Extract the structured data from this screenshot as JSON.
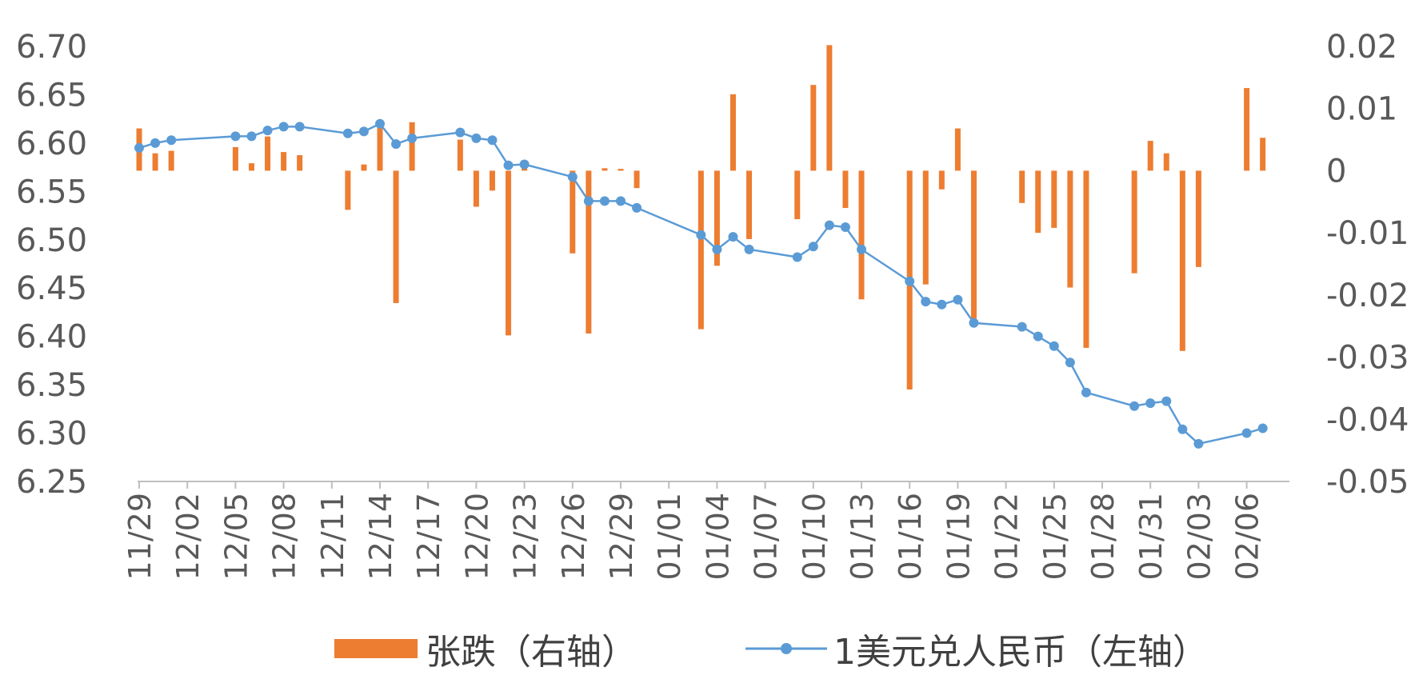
{
  "chart_data": {
    "type": "bar+line",
    "title": "",
    "x_labels": [
      "11/29",
      "12/02",
      "12/05",
      "12/08",
      "12/11",
      "12/14",
      "12/17",
      "12/20",
      "12/23",
      "12/26",
      "12/29",
      "01/01",
      "01/04",
      "01/07",
      "01/10",
      "01/13",
      "01/16",
      "01/19",
      "01/22",
      "01/25",
      "01/28",
      "01/31",
      "02/03",
      "02/06"
    ],
    "left_axis": {
      "ticks": [
        "6.25",
        "6.30",
        "6.35",
        "6.40",
        "6.45",
        "6.50",
        "6.55",
        "6.60",
        "6.65",
        "6.70"
      ],
      "ylim": [
        6.25,
        6.7
      ]
    },
    "right_axis": {
      "ticks": [
        "-0.05",
        "-0.04",
        "-0.03",
        "-0.02",
        "-0.01",
        "0",
        "0.01",
        "0.02"
      ],
      "ylim": [
        -0.05,
        0.02
      ]
    },
    "bar_color": "#ED7D31",
    "line_color": "#5B9BD5",
    "series": [
      {
        "name": "张跌（右轴）",
        "axis": "right",
        "kind": "bar",
        "points": [
          [
            "11/29",
            0.0068
          ],
          [
            "11/30",
            0.0028
          ],
          [
            "12/01",
            0.0032
          ],
          [
            "12/05",
            0.0038
          ],
          [
            "12/06",
            0.0012
          ],
          [
            "12/07",
            0.0055
          ],
          [
            "12/08",
            0.003
          ],
          [
            "12/09",
            0.0025
          ],
          [
            "12/12",
            -0.0063
          ],
          [
            "12/13",
            0.001
          ],
          [
            "12/14",
            0.008
          ],
          [
            "12/15",
            -0.0213
          ],
          [
            "12/16",
            0.0078
          ],
          [
            "12/19",
            0.005
          ],
          [
            "12/20",
            -0.0058
          ],
          [
            "12/21",
            -0.0032
          ],
          [
            "12/22",
            -0.0265
          ],
          [
            "12/23",
            0.001
          ],
          [
            "12/26",
            -0.0133
          ],
          [
            "12/27",
            -0.0262
          ],
          [
            "12/28",
            0.0004
          ],
          [
            "12/29",
            0.0003
          ],
          [
            "12/30",
            -0.0028
          ],
          [
            "01/03",
            -0.0255
          ],
          [
            "01/04",
            -0.0153
          ],
          [
            "01/05",
            0.0123
          ],
          [
            "01/06",
            -0.011
          ],
          [
            "01/09",
            -0.0078
          ],
          [
            "01/10",
            0.0138
          ],
          [
            "01/11",
            0.0202
          ],
          [
            "01/12",
            -0.006
          ],
          [
            "01/13",
            -0.0207
          ],
          [
            "01/16",
            -0.0352
          ],
          [
            "01/17",
            -0.0183
          ],
          [
            "01/18",
            -0.003
          ],
          [
            "01/19",
            0.0068
          ],
          [
            "01/20",
            -0.0238
          ],
          [
            "01/23",
            -0.0052
          ],
          [
            "01/24",
            -0.01
          ],
          [
            "01/25",
            -0.0092
          ],
          [
            "01/26",
            -0.0188
          ],
          [
            "01/27",
            -0.0285
          ],
          [
            "01/30",
            -0.0165
          ],
          [
            "01/31",
            0.0048
          ],
          [
            "02/01",
            0.0028
          ],
          [
            "02/02",
            -0.029
          ],
          [
            "02/03",
            -0.0155
          ],
          [
            "02/06",
            0.0133
          ],
          [
            "02/07",
            0.0053
          ]
        ]
      },
      {
        "name": "1美元兑人民币（左轴）",
        "axis": "left",
        "kind": "line",
        "points": [
          [
            "11/29",
            6.595
          ],
          [
            "11/30",
            6.6
          ],
          [
            "12/01",
            6.603
          ],
          [
            "12/05",
            6.607
          ],
          [
            "12/06",
            6.607
          ],
          [
            "12/07",
            6.613
          ],
          [
            "12/08",
            6.617
          ],
          [
            "12/09",
            6.617
          ],
          [
            "12/12",
            6.61
          ],
          [
            "12/13",
            6.612
          ],
          [
            "12/14",
            6.62
          ],
          [
            "12/15",
            6.599
          ],
          [
            "12/16",
            6.605
          ],
          [
            "12/19",
            6.611
          ],
          [
            "12/20",
            6.605
          ],
          [
            "12/21",
            6.603
          ],
          [
            "12/22",
            6.577
          ],
          [
            "12/23",
            6.578
          ],
          [
            "12/26",
            6.565
          ],
          [
            "12/27",
            6.54
          ],
          [
            "12/28",
            6.54
          ],
          [
            "12/29",
            6.54
          ],
          [
            "12/30",
            6.533
          ],
          [
            "01/03",
            6.505
          ],
          [
            "01/04",
            6.49
          ],
          [
            "01/05",
            6.503
          ],
          [
            "01/06",
            6.49
          ],
          [
            "01/09",
            6.482
          ],
          [
            "01/10",
            6.493
          ],
          [
            "01/11",
            6.515
          ],
          [
            "01/12",
            6.513
          ],
          [
            "01/13",
            6.49
          ],
          [
            "01/16",
            6.457
          ],
          [
            "01/17",
            6.436
          ],
          [
            "01/18",
            6.433
          ],
          [
            "01/19",
            6.438
          ],
          [
            "01/20",
            6.414
          ],
          [
            "01/23",
            6.41
          ],
          [
            "01/24",
            6.4
          ],
          [
            "01/25",
            6.39
          ],
          [
            "01/26",
            6.373
          ],
          [
            "01/27",
            6.342
          ],
          [
            "01/30",
            6.328
          ],
          [
            "01/31",
            6.331
          ],
          [
            "02/01",
            6.333
          ],
          [
            "02/02",
            6.304
          ],
          [
            "02/03",
            6.289
          ],
          [
            "02/06",
            6.3
          ],
          [
            "02/07",
            6.305
          ]
        ]
      }
    ],
    "legend": {
      "position": "bottom"
    }
  }
}
